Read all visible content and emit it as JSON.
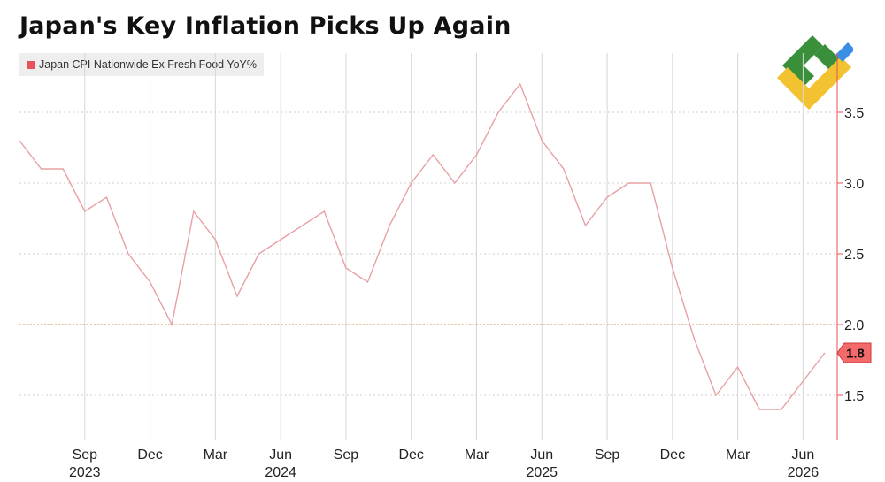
{
  "title": "Japan's Key Inflation Picks Up Again",
  "legend": {
    "label": "Japan CPI Nationwide Ex Fresh Food YoY%",
    "color": "#e8525a"
  },
  "logo": {
    "icon": "brand-logo-icon",
    "colors": [
      "#3a8f3a",
      "#f2c230",
      "#3a8ee6"
    ]
  },
  "chart_data": {
    "type": "line",
    "title": "Japan's Key Inflation Picks Up Again",
    "series": [
      {
        "name": "Japan CPI Nationwide Ex Fresh Food YoY%",
        "color": "#e8a0a4",
        "x": [
          "2023-06",
          "2023-07",
          "2023-08",
          "2023-09",
          "2023-10",
          "2023-11",
          "2023-12",
          "2024-01",
          "2024-02",
          "2024-03",
          "2024-04",
          "2024-05",
          "2024-06",
          "2024-07",
          "2024-08",
          "2024-09",
          "2024-10",
          "2024-11",
          "2024-12",
          "2025-01",
          "2025-02",
          "2025-03",
          "2025-04",
          "2025-05",
          "2025-06",
          "2025-07",
          "2025-08",
          "2025-09",
          "2025-10",
          "2025-11",
          "2025-12",
          "2026-01",
          "2026-02",
          "2026-03",
          "2026-04",
          "2026-05",
          "2026-06",
          "2026-07"
        ],
        "values": [
          3.3,
          3.1,
          3.1,
          2.8,
          2.9,
          2.5,
          2.3,
          2.0,
          2.8,
          2.6,
          2.2,
          2.5,
          2.6,
          2.7,
          2.8,
          2.4,
          2.3,
          2.7,
          3.0,
          3.2,
          3.0,
          3.2,
          3.5,
          3.7,
          3.3,
          3.1,
          2.7,
          2.9,
          3.0,
          3.0,
          2.4,
          1.9,
          1.5,
          1.7,
          1.4,
          1.4,
          1.6,
          1.8
        ]
      }
    ],
    "x_ticks": [
      "Sep",
      "Dec",
      "Mar",
      "Jun",
      "Sep",
      "Dec",
      "Mar",
      "Jun",
      "Sep",
      "Dec",
      "Mar",
      "Jun"
    ],
    "x_years": [
      "2023",
      "2024",
      "2025",
      "2026"
    ],
    "y_ticks": [
      "1.5",
      "2.0",
      "2.5",
      "3.0",
      "3.5"
    ],
    "ylim": [
      1.2,
      3.9
    ],
    "reference_line": {
      "value": 2.0,
      "color": "#e8a060"
    },
    "last_value_label": "1.8",
    "grid": true,
    "y_axis_side": "right",
    "legend_position": "top-left"
  }
}
